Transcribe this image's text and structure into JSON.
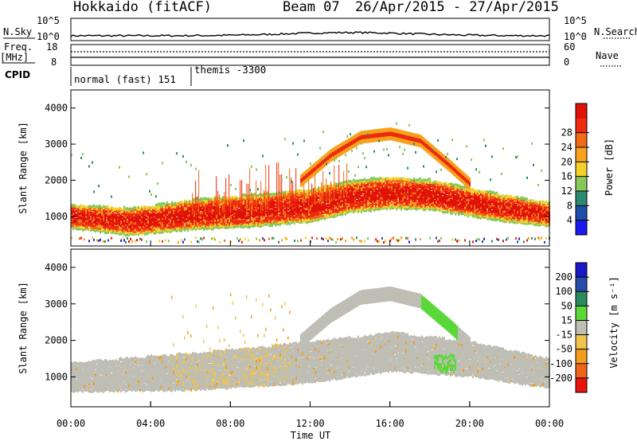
{
  "header": {
    "station": "Hokkaido (fitACF)",
    "beam": "Beam 07",
    "dates": "26/Apr/2015 - 27/Apr/2015"
  },
  "top_panels": {
    "nsky_label": "N.Sky",
    "nsky_ticks": [
      "10^5",
      "10^0"
    ],
    "nsearch_label": "N.Search",
    "nsearch_ticks": [
      "10^5",
      "10^0"
    ],
    "freq_label": "Freq.",
    "freq_unit": "[MHz]",
    "freq_ticks": [
      "18",
      "8"
    ],
    "nave_label": "Nave",
    "nave_ticks": [
      "60",
      "0"
    ],
    "cpid_label": "CPID",
    "cpid_segments": [
      {
        "name": "normal (fast) 151",
        "start_hour": 0,
        "end_hour": 6
      },
      {
        "name": "themis -3300",
        "start_hour": 6,
        "end_hour": 24
      }
    ]
  },
  "x_axis": {
    "label": "Time UT",
    "ticks": [
      "00:00",
      "04:00",
      "08:00",
      "12:00",
      "16:00",
      "20:00",
      "00:00"
    ],
    "range_hours": [
      0,
      24
    ]
  },
  "colors": {
    "power": [
      "#1a1aee",
      "#1f4ea8",
      "#2d8a70",
      "#86c85a",
      "#f3d02a",
      "#f6a21d",
      "#f26a16",
      "#ee2a0f",
      "#e01208"
    ],
    "velocity": [
      "#e81410",
      "#f16418",
      "#f39c1e",
      "#f0c34a",
      "#bebeb4",
      "#5ad83a",
      "#2c8a5c",
      "#264ea8",
      "#1818c8"
    ]
  },
  "chart_data": [
    {
      "type": "heatmap",
      "title": "Power",
      "xlabel": "Time UT",
      "ylabel": "Slant Range [km]",
      "y_ticks": [
        "1000",
        "2000",
        "3000",
        "4000"
      ],
      "ylim": [
        180,
        4500
      ],
      "colorbar_label": "Power [dB]",
      "colorbar_ticks": [
        "4",
        "8",
        "12",
        "16",
        "20",
        "24",
        "28"
      ],
      "colorbar_range": [
        0,
        30
      ],
      "features": [
        {
          "name": "main band",
          "x_hours": [
            0,
            3,
            6,
            9,
            12,
            14,
            16,
            18,
            20,
            22,
            24
          ],
          "y_km": [
            1000,
            850,
            1050,
            1150,
            1300,
            1550,
            1650,
            1600,
            1400,
            1200,
            1050
          ],
          "power_db": 28
        },
        {
          "name": "upper arc",
          "x_hours": [
            11.5,
            13,
            14.5,
            16,
            17.5,
            19,
            20
          ],
          "y_km": [
            2000,
            2700,
            3200,
            3300,
            3100,
            2400,
            1900
          ],
          "power_db": 22
        }
      ]
    },
    {
      "type": "heatmap",
      "title": "Velocity",
      "xlabel": "Time UT",
      "ylabel": "Slant Range [km]",
      "y_ticks": [
        "1000",
        "2000",
        "3000",
        "4000"
      ],
      "ylim": [
        180,
        4500
      ],
      "colorbar_label": "Velocity [m s⁻¹]",
      "colorbar_ticks": [
        "200",
        "100",
        "50",
        "15",
        "-15",
        "-50",
        "-100",
        "-200"
      ],
      "colorbar_range": [
        -250,
        250
      ],
      "features": [
        {
          "name": "grey low-velocity band",
          "x_hours": [
            0,
            6,
            12,
            16,
            20,
            24
          ],
          "y_km": [
            1000,
            1150,
            1400,
            1700,
            1500,
            1100
          ],
          "velocity": 0
        },
        {
          "name": "green patch",
          "x_hours": [
            18,
            19
          ],
          "y_km": [
            2500,
            2900
          ],
          "velocity": 60
        }
      ]
    }
  ]
}
